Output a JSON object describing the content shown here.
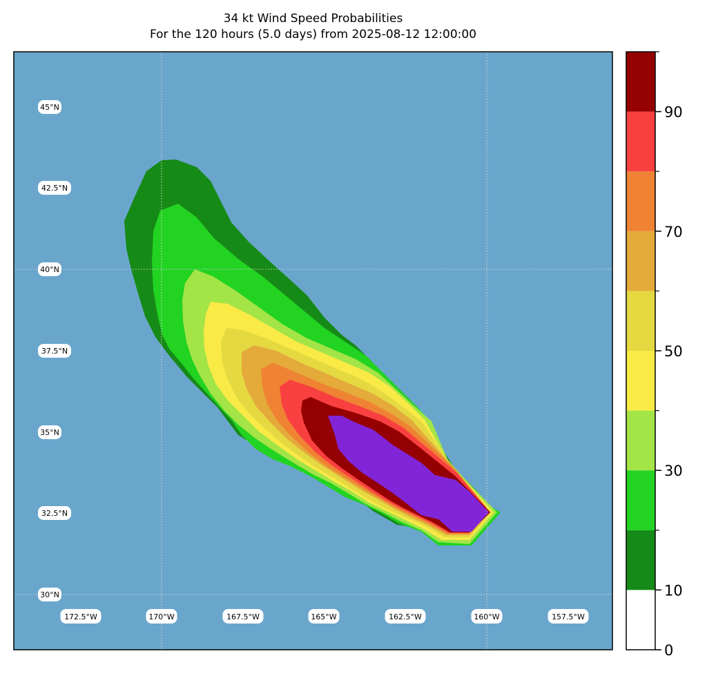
{
  "title": {
    "line1": "34 kt Wind Speed Probabilities",
    "line2": "For the 120 hours (5.0 days) from 2025-08-12 12:00:00"
  },
  "map": {
    "ocean_color": "#6aa6cc",
    "lat_labels": [
      "45°N",
      "42.5°N",
      "40°N",
      "37.5°N",
      "35°N",
      "32.5°N",
      "30°N"
    ],
    "lon_labels": [
      "172.5°W",
      "170°W",
      "167.5°W",
      "165°W",
      "162.5°W",
      "160°W",
      "157.5°W"
    ],
    "gridlines": true
  },
  "colorbar": {
    "levels": [
      0,
      10,
      20,
      30,
      40,
      50,
      60,
      70,
      80,
      90,
      100
    ],
    "colors": [
      "#ffffff",
      "#168a16",
      "#22d322",
      "#a3e446",
      "#f9ea46",
      "#e5d942",
      "#e4aa3a",
      "#ef8233",
      "#f94040",
      "#950000",
      "#8026d8"
    ],
    "tick_labels": [
      "0",
      "10",
      "30",
      "50",
      "70",
      "90"
    ]
  }
}
